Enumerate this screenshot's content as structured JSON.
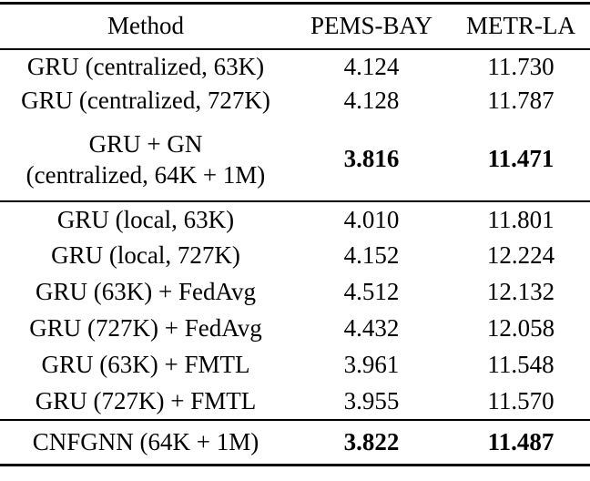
{
  "table": {
    "columns": {
      "method": "Method",
      "pems_bay": "PEMS-BAY",
      "metr_la": "METR-LA"
    },
    "sections": [
      {
        "rows": [
          {
            "method_lines": [
              "GRU (centralized, 63K)"
            ],
            "pems_bay": "4.124",
            "metr_la": "11.730",
            "bold": false
          },
          {
            "method_lines": [
              "GRU (centralized, 727K)"
            ],
            "pems_bay": "4.128",
            "metr_la": "11.787",
            "bold": false
          },
          {
            "method_lines": [
              "GRU + GN",
              "(centralized, 64K + 1M)"
            ],
            "pems_bay": "3.816",
            "metr_la": "11.471",
            "bold": true
          }
        ]
      },
      {
        "rows": [
          {
            "method_lines": [
              "GRU (local, 63K)"
            ],
            "pems_bay": "4.010",
            "metr_la": "11.801",
            "bold": false
          },
          {
            "method_lines": [
              "GRU (local, 727K)"
            ],
            "pems_bay": "4.152",
            "metr_la": "12.224",
            "bold": false
          },
          {
            "method_lines": [
              "GRU (63K) + FedAvg"
            ],
            "pems_bay": "4.512",
            "metr_la": "12.132",
            "bold": false
          },
          {
            "method_lines": [
              "GRU (727K) + FedAvg"
            ],
            "pems_bay": "4.432",
            "metr_la": "12.058",
            "bold": false
          },
          {
            "method_lines": [
              "GRU (63K) + FMTL"
            ],
            "pems_bay": "3.961",
            "metr_la": "11.548",
            "bold": false
          },
          {
            "method_lines": [
              "GRU (727K) + FMTL"
            ],
            "pems_bay": "3.955",
            "metr_la": "11.570",
            "bold": false
          }
        ]
      },
      {
        "rows": [
          {
            "method_lines": [
              "CNFGNN (64K + 1M)"
            ],
            "pems_bay": "3.822",
            "metr_la": "11.487",
            "bold": true
          }
        ]
      }
    ]
  },
  "chart_data": {
    "type": "table",
    "columns": [
      "Method",
      "PEMS-BAY",
      "METR-LA"
    ],
    "rows": [
      [
        "GRU (centralized, 63K)",
        4.124,
        11.73
      ],
      [
        "GRU (centralized, 727K)",
        4.128,
        11.787
      ],
      [
        "GRU + GN (centralized, 64K + 1M)",
        3.816,
        11.471
      ],
      [
        "GRU (local, 63K)",
        4.01,
        11.801
      ],
      [
        "GRU (local, 727K)",
        4.152,
        12.224
      ],
      [
        "GRU (63K) + FedAvg",
        4.512,
        12.132
      ],
      [
        "GRU (727K) + FedAvg",
        4.432,
        12.058
      ],
      [
        "GRU (63K) + FMTL",
        3.961,
        11.548
      ],
      [
        "GRU (727K) + FMTL",
        3.955,
        11.57
      ],
      [
        "CNFGNN (64K + 1M)",
        3.822,
        11.487
      ]
    ],
    "bold_rows": [
      2,
      9
    ],
    "section_breaks_after_rows": [
      2,
      8
    ]
  },
  "colors": {
    "text": "#000000",
    "rule": "#000000",
    "background": "#ffffff"
  }
}
